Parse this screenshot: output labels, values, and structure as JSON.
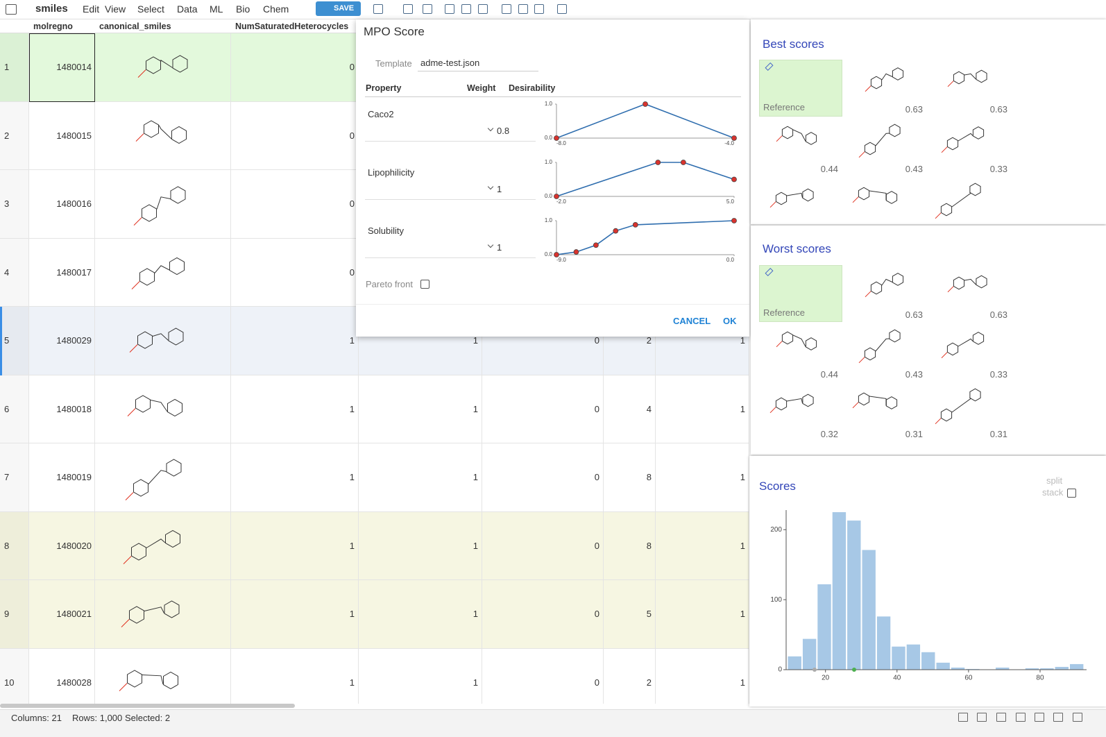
{
  "toolbar": {
    "table": "smiles",
    "menu": [
      "Edit",
      "View",
      "Select",
      "Data",
      "ML",
      "Bio",
      "Chem"
    ],
    "save": "SAVE"
  },
  "grid": {
    "columns": [
      "molregno",
      "canonical_smiles",
      "NumSaturatedHeterocycles"
    ],
    "rows": [
      {
        "index": 1,
        "molregno": 1480014,
        "values": [
          0
        ]
      },
      {
        "index": 2,
        "molregno": 1480015,
        "values": [
          0
        ]
      },
      {
        "index": 3,
        "molregno": 1480016,
        "values": [
          0
        ]
      },
      {
        "index": 4,
        "molregno": 1480017,
        "values": [
          0
        ]
      },
      {
        "index": 5,
        "molregno": 1480029,
        "values": [
          1,
          1,
          0,
          2,
          1
        ]
      },
      {
        "index": 6,
        "molregno": 1480018,
        "values": [
          1,
          1,
          0,
          4,
          1
        ]
      },
      {
        "index": 7,
        "molregno": 1480019,
        "values": [
          1,
          1,
          0,
          8,
          1
        ]
      },
      {
        "index": 8,
        "molregno": 1480020,
        "values": [
          1,
          1,
          0,
          8,
          1
        ]
      },
      {
        "index": 9,
        "molregno": 1480021,
        "values": [
          1,
          1,
          0,
          5,
          1
        ]
      },
      {
        "index": 10,
        "molregno": 1480028,
        "values": [
          1,
          1,
          0,
          2,
          1
        ]
      }
    ]
  },
  "dialog": {
    "title": "MPO Score",
    "template_label": "Template",
    "template": "adme-test.json",
    "headers": [
      "Property",
      "Weight",
      "Desirability"
    ],
    "properties": [
      {
        "name": "Caco2",
        "weight": 0.8,
        "x": [
          -8,
          -6,
          -4
        ],
        "y": [
          0,
          1,
          0
        ],
        "xlim": [
          -8,
          -4
        ],
        "ylim": [
          0,
          1
        ],
        "xticks": [
          {
            "value": -8,
            "label": "-8.0"
          },
          {
            "value": -4,
            "label": "-4.0"
          }
        ],
        "yticks": [
          {
            "value": 0,
            "label": "0.0"
          },
          {
            "value": 1,
            "label": "1.0"
          }
        ]
      },
      {
        "name": "Lipophilicity",
        "weight": 1,
        "x": [
          -2,
          2,
          3,
          5
        ],
        "y": [
          0,
          1,
          1,
          0.5
        ],
        "xlim": [
          -2,
          5
        ],
        "ylim": [
          0,
          1
        ],
        "xticks": [
          {
            "value": -2,
            "label": "-2.0"
          },
          {
            "value": 5,
            "label": "5.0"
          }
        ],
        "yticks": [
          {
            "value": 0,
            "label": "0.0"
          },
          {
            "value": 1,
            "label": "1.0"
          }
        ]
      },
      {
        "name": "Solubility",
        "weight": 1,
        "x": [
          -9,
          -8,
          -7,
          -6,
          -5,
          0
        ],
        "y": [
          0,
          0.08,
          0.28,
          0.7,
          0.88,
          1
        ],
        "xlim": [
          -9,
          0
        ],
        "ylim": [
          0,
          1
        ],
        "xticks": [
          {
            "value": -9,
            "label": "-9.0"
          },
          {
            "value": 0,
            "label": "0.0"
          }
        ],
        "yticks": [
          {
            "value": 0,
            "label": "0.0"
          },
          {
            "value": 1,
            "label": "1.0"
          }
        ]
      }
    ],
    "pareto": "Pareto front",
    "cancel": "CANCEL",
    "ok": "OK"
  },
  "best_scores": {
    "title": "Best scores",
    "items": [
      "Reference",
      0.63,
      0.63,
      0.44,
      0.43,
      0.33,
      null,
      null,
      null
    ]
  },
  "worst_scores": {
    "title": "Worst scores",
    "items": [
      "Reference",
      0.63,
      0.63,
      0.44,
      0.43,
      0.33,
      0.32,
      0.31,
      0.31
    ]
  },
  "chart_data": {
    "type": "histogram",
    "title": "Scores",
    "options": [
      "split",
      "stack"
    ],
    "bins": [
      9.3,
      13.45,
      17.6,
      21.75,
      25.9,
      30.05,
      34.2,
      38.35,
      42.5,
      46.65,
      50.8,
      54.95,
      59.1,
      63.25,
      67.4,
      71.55,
      75.7,
      79.85,
      84.0,
      88.15,
      92.3
    ],
    "values": [
      19,
      44,
      122,
      225,
      213,
      171,
      76,
      33,
      36,
      25,
      10,
      3,
      1,
      0,
      3,
      0,
      2,
      2,
      4,
      8
    ],
    "color": "#a7c8e6",
    "xlim": [
      9,
      93
    ],
    "ylim": [
      0,
      228
    ],
    "xticks": [
      20,
      40,
      60,
      80
    ],
    "yticks": [
      0,
      100,
      200
    ]
  },
  "status": {
    "columns": "Columns: 21",
    "rows": "Rows: 1,000",
    "selected": "Selected: 2"
  }
}
